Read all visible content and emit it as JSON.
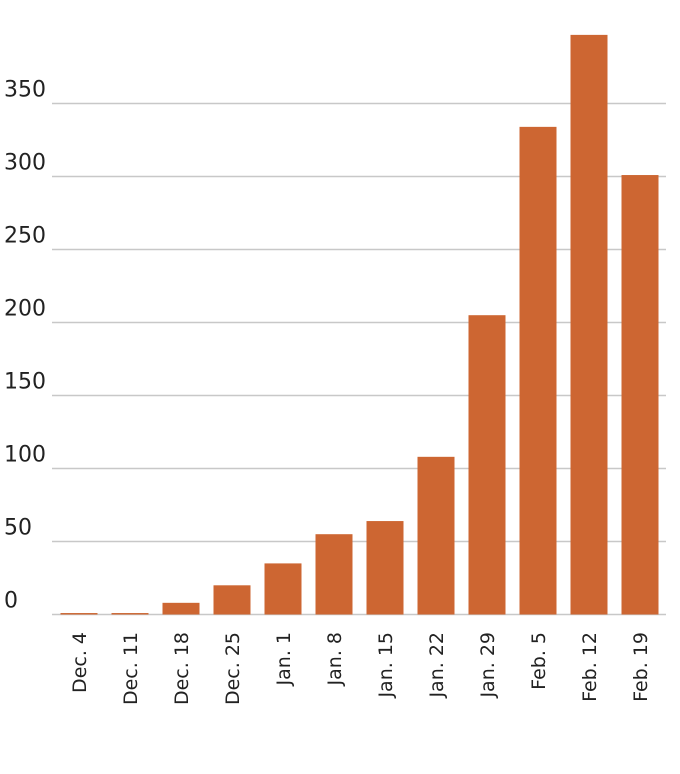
{
  "chart_data": {
    "type": "bar",
    "categories": [
      "Dec. 4",
      "Dec. 11",
      "Dec. 18",
      "Dec. 25",
      "Jan. 1",
      "Jan. 8",
      "Jan. 15",
      "Jan. 22",
      "Jan. 29",
      "Feb. 5",
      "Feb. 12",
      "Feb. 19"
    ],
    "values": [
      1,
      1,
      8,
      20,
      35,
      55,
      64,
      108,
      205,
      334,
      397,
      301
    ],
    "yticks": [
      0,
      50,
      100,
      150,
      200,
      250,
      300,
      350
    ],
    "ylim": [
      0,
      400
    ],
    "grid": true,
    "bar_color": "#cd6632",
    "title": "",
    "xlabel": "",
    "ylabel": ""
  }
}
